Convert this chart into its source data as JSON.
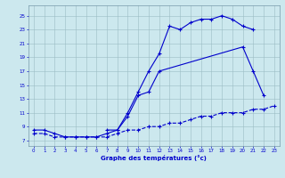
{
  "title": "Graphe des températures (°c)",
  "bg_color": "#cce8ee",
  "line_color": "#0000cc",
  "x_ticks": [
    0,
    1,
    2,
    3,
    4,
    5,
    6,
    7,
    8,
    9,
    10,
    11,
    12,
    13,
    14,
    15,
    16,
    17,
    18,
    19,
    20,
    21,
    22,
    23
  ],
  "y_ticks": [
    7,
    9,
    11,
    13,
    15,
    17,
    19,
    21,
    23,
    25
  ],
  "xlim": [
    -0.5,
    23.5
  ],
  "ylim": [
    6.2,
    26.5
  ],
  "curve1_y": [
    8.5,
    8.5,
    8.0,
    7.5,
    7.5,
    7.5,
    7.5,
    8.0,
    8.5,
    11.0,
    14.0,
    17.0,
    19.5,
    23.5,
    23.0,
    24.0,
    24.5,
    24.5,
    25.0,
    24.5,
    23.5,
    23.0,
    null,
    null
  ],
  "curve2_y": [
    null,
    null,
    null,
    null,
    null,
    null,
    null,
    8.5,
    8.5,
    10.5,
    13.5,
    14.0,
    17.0,
    null,
    null,
    null,
    null,
    null,
    null,
    null,
    20.5,
    17.0,
    13.5,
    null
  ],
  "curve3_y": [
    8.0,
    8.0,
    7.5,
    7.5,
    7.5,
    7.5,
    7.5,
    7.5,
    8.0,
    8.5,
    8.5,
    9.0,
    9.0,
    9.5,
    9.5,
    10.0,
    10.5,
    10.5,
    11.0,
    11.0,
    11.0,
    11.5,
    11.5,
    12.0
  ]
}
